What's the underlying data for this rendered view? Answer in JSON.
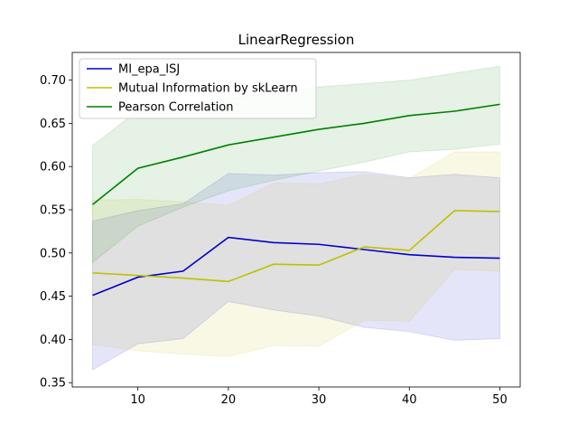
{
  "chart_data": {
    "type": "line",
    "title": "LinearRegression",
    "xlabel": "",
    "ylabel": "",
    "x": [
      5,
      10,
      15,
      20,
      25,
      30,
      35,
      40,
      45,
      50
    ],
    "xlim": [
      2.75,
      52.25
    ],
    "ylim": [
      0.345,
      0.732
    ],
    "xticks": [
      10,
      20,
      30,
      40,
      50
    ],
    "yticks": [
      0.35,
      0.4,
      0.45,
      0.5,
      0.55,
      0.6,
      0.65,
      0.7
    ],
    "ytick_labels": [
      "0.35",
      "0.40",
      "0.45",
      "0.50",
      "0.55",
      "0.60",
      "0.65",
      "0.70"
    ],
    "grid": false,
    "legend_position": "top-left",
    "series": [
      {
        "name": "MI_epa_ISJ",
        "color": "#0000cc",
        "values": [
          0.451,
          0.472,
          0.479,
          0.518,
          0.512,
          0.51,
          0.504,
          0.498,
          0.495,
          0.494
        ],
        "lower": [
          0.365,
          0.395,
          0.401,
          0.444,
          0.434,
          0.427,
          0.414,
          0.409,
          0.399,
          0.401
        ],
        "upper": [
          0.537,
          0.549,
          0.557,
          0.592,
          0.59,
          0.593,
          0.594,
          0.587,
          0.591,
          0.587
        ]
      },
      {
        "name": "Mutual Information by skLearn",
        "color": "#bfbf00",
        "values": [
          0.477,
          0.474,
          0.471,
          0.467,
          0.487,
          0.486,
          0.507,
          0.503,
          0.549,
          0.548
        ],
        "lower": [
          0.394,
          0.387,
          0.383,
          0.38,
          0.393,
          0.392,
          0.422,
          0.421,
          0.481,
          0.479
        ],
        "upper": [
          0.561,
          0.562,
          0.559,
          0.555,
          0.581,
          0.58,
          0.591,
          0.586,
          0.617,
          0.617
        ]
      },
      {
        "name": "Pearson Correlation",
        "color": "#008000",
        "values": [
          0.556,
          0.598,
          0.611,
          0.625,
          0.634,
          0.643,
          0.65,
          0.659,
          0.664,
          0.672
        ],
        "lower": [
          0.489,
          0.531,
          0.553,
          0.572,
          0.584,
          0.595,
          0.605,
          0.617,
          0.62,
          0.626
        ],
        "upper": [
          0.624,
          0.665,
          0.668,
          0.679,
          0.685,
          0.692,
          0.696,
          0.7,
          0.708,
          0.716
        ]
      }
    ]
  }
}
